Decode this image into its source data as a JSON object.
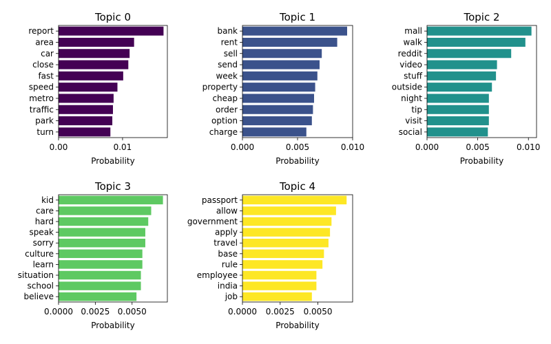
{
  "chart_data": [
    {
      "type": "bar",
      "orientation": "horizontal",
      "title": "Topic 0",
      "xlabel": "Probability",
      "ylabel": "",
      "xlim": [
        0,
        0.017
      ],
      "xticks": [
        0,
        0.01
      ],
      "xtick_labels": [
        "0.00",
        "0.01"
      ],
      "color": "#440154",
      "categories": [
        "report",
        "area",
        "car",
        "close",
        "fast",
        "speed",
        "metro",
        "traffic",
        "park",
        "turn"
      ],
      "values": [
        0.0164,
        0.0118,
        0.0111,
        0.0109,
        0.0101,
        0.0092,
        0.0086,
        0.0085,
        0.0084,
        0.0081
      ]
    },
    {
      "type": "bar",
      "orientation": "horizontal",
      "title": "Topic 1",
      "xlabel": "Probability",
      "ylabel": "",
      "xlim": [
        0,
        0.01
      ],
      "xticks": [
        0,
        0.005,
        0.01
      ],
      "xtick_labels": [
        "0.000",
        "0.005",
        "0.010"
      ],
      "color": "#3b528b",
      "categories": [
        "bank",
        "rent",
        "sell",
        "send",
        "week",
        "property",
        "cheap",
        "order",
        "option",
        "charge"
      ],
      "values": [
        0.0095,
        0.0086,
        0.0072,
        0.007,
        0.0068,
        0.0066,
        0.0065,
        0.0064,
        0.0063,
        0.0058
      ]
    },
    {
      "type": "bar",
      "orientation": "horizontal",
      "title": "Topic 2",
      "xlabel": "Probability",
      "ylabel": "",
      "xlim": [
        0,
        0.0108
      ],
      "xticks": [
        0,
        0.005,
        0.01
      ],
      "xtick_labels": [
        "0.000",
        "0.005",
        "0.010"
      ],
      "color": "#21918c",
      "categories": [
        "mall",
        "walk",
        "reddit",
        "video",
        "stuff",
        "outside",
        "night",
        "tip",
        "visit",
        "social"
      ],
      "values": [
        0.0103,
        0.0097,
        0.0083,
        0.0069,
        0.0068,
        0.0064,
        0.0061,
        0.0061,
        0.0061,
        0.006
      ]
    },
    {
      "type": "bar",
      "orientation": "horizontal",
      "title": "Topic 3",
      "xlabel": "Probability",
      "ylabel": "",
      "xlim": [
        0,
        0.0074
      ],
      "xticks": [
        0,
        0.0025,
        0.005
      ],
      "xtick_labels": [
        "0.0000",
        "0.0025",
        "0.0050"
      ],
      "color": "#5ec962",
      "categories": [
        "kid",
        "care",
        "hard",
        "speak",
        "sorry",
        "culture",
        "learn",
        "situation",
        "school",
        "believe"
      ],
      "values": [
        0.0071,
        0.0063,
        0.0061,
        0.0059,
        0.0059,
        0.0057,
        0.0057,
        0.0056,
        0.0056,
        0.0053
      ]
    },
    {
      "type": "bar",
      "orientation": "horizontal",
      "title": "Topic 4",
      "xlabel": "Probability",
      "ylabel": "",
      "xlim": [
        0,
        0.0073
      ],
      "xticks": [
        0,
        0.0025,
        0.005
      ],
      "xtick_labels": [
        "0.0000",
        "0.0025",
        "0.0050"
      ],
      "color": "#fde725",
      "categories": [
        "passport",
        "allow",
        "government",
        "apply",
        "travel",
        "base",
        "rule",
        "employee",
        "india",
        "job"
      ],
      "values": [
        0.0069,
        0.0062,
        0.0059,
        0.0058,
        0.0057,
        0.0054,
        0.0053,
        0.0049,
        0.0049,
        0.0046
      ]
    }
  ]
}
